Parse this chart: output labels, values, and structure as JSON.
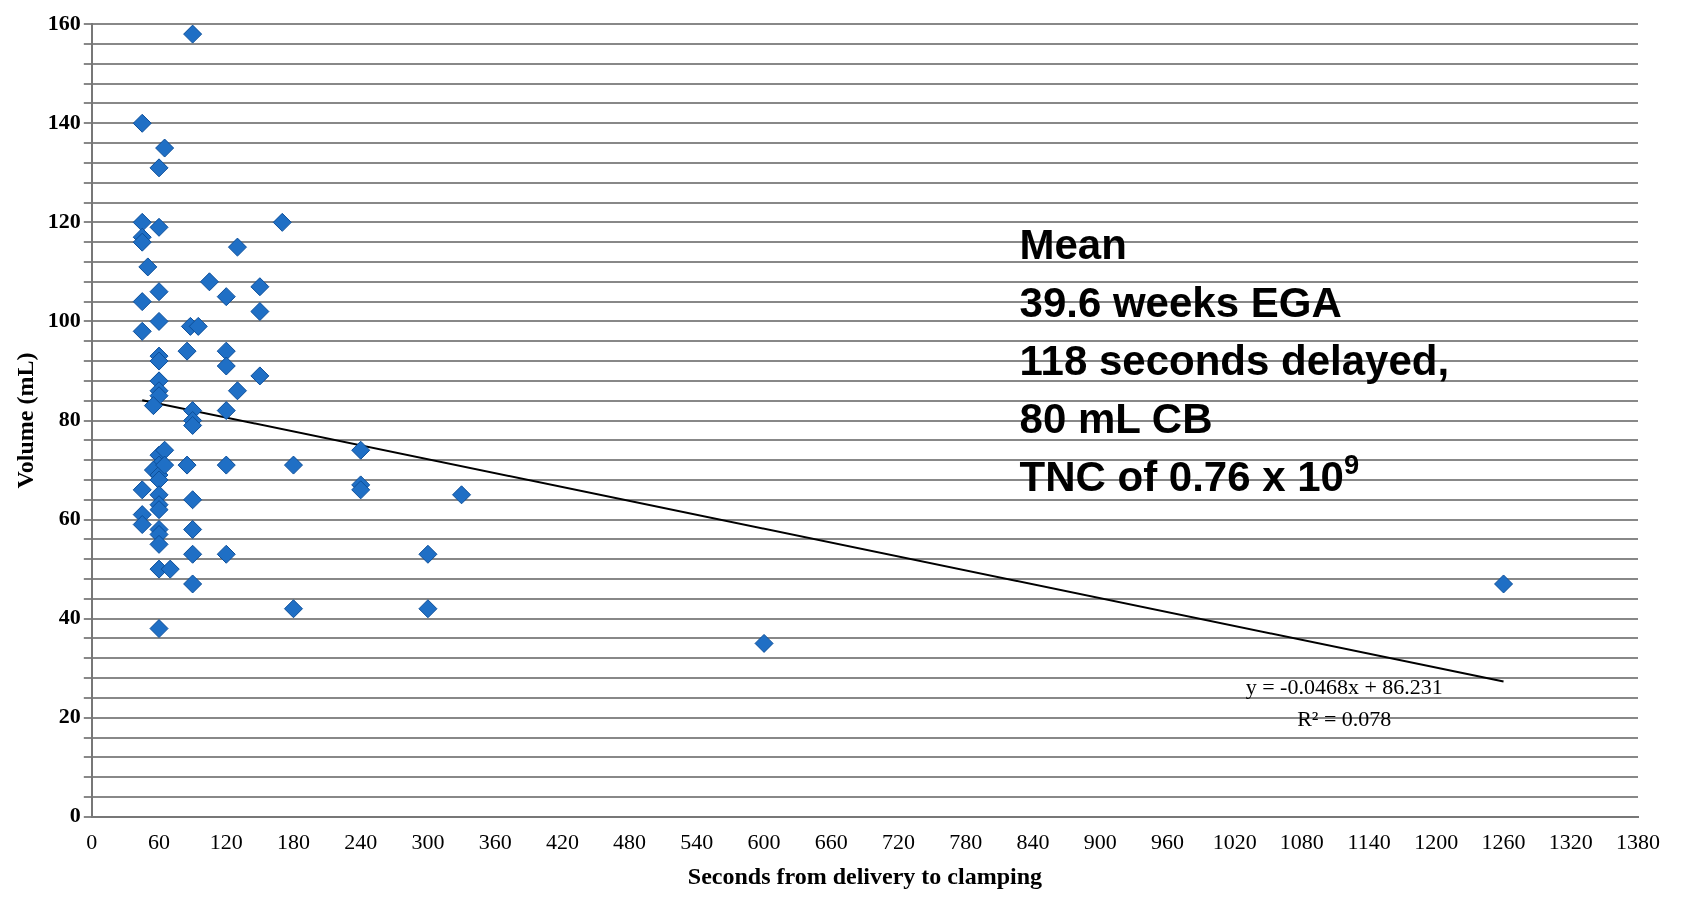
{
  "chart_data": {
    "type": "scatter",
    "xlabel": "Seconds from delivery to clamping",
    "ylabel": "Volume (mL)",
    "xlim": [
      0,
      1380
    ],
    "xticks": [
      0,
      60,
      120,
      180,
      240,
      300,
      360,
      420,
      480,
      540,
      600,
      660,
      720,
      780,
      840,
      900,
      960,
      1020,
      1080,
      1140,
      1200,
      1260,
      1320,
      1380
    ],
    "ylim": [
      0,
      160
    ],
    "yticks": [
      0,
      {
        "value": 4,
        "label": null
      },
      {
        "value": 8,
        "label": null
      },
      {
        "value": 12,
        "label": null
      },
      {
        "value": 16,
        "label": null
      },
      20,
      {
        "value": 24,
        "label": null
      },
      {
        "value": 28,
        "label": null
      },
      {
        "value": 32,
        "label": null
      },
      {
        "value": 36,
        "label": null
      },
      40,
      {
        "value": 44,
        "label": null
      },
      {
        "value": 48,
        "label": null
      },
      {
        "value": 52,
        "label": null
      },
      {
        "value": 56,
        "label": null
      },
      60,
      {
        "value": 64,
        "label": null
      },
      {
        "value": 68,
        "label": null
      },
      {
        "value": 72,
        "label": null
      },
      {
        "value": 76,
        "label": null
      },
      80,
      {
        "value": 84,
        "label": null
      },
      {
        "value": 88,
        "label": null
      },
      {
        "value": 92,
        "label": null
      },
      {
        "value": 96,
        "label": null
      },
      100,
      {
        "value": 104,
        "label": null
      },
      {
        "value": 108,
        "label": null
      },
      {
        "value": 112,
        "label": null
      },
      {
        "value": 116,
        "label": null
      },
      120,
      {
        "value": 124,
        "label": null
      },
      {
        "value": 128,
        "label": null
      },
      {
        "value": 132,
        "label": null
      },
      {
        "value": 136,
        "label": null
      },
      140,
      {
        "value": 144,
        "label": null
      },
      {
        "value": 148,
        "label": null
      },
      {
        "value": 152,
        "label": null
      },
      {
        "value": 156,
        "label": null
      },
      160
    ],
    "grid": "y",
    "legend": false,
    "marker": "diamond",
    "series": [
      {
        "type": "scatter",
        "color": "#1f6fc5",
        "x": [
          90,
          45,
          65,
          60,
          45,
          45,
          45,
          60,
          50,
          45,
          60,
          45,
          60,
          60,
          60,
          60,
          60,
          60,
          55,
          88,
          95,
          85,
          105,
          120,
          120,
          120,
          130,
          120,
          130,
          150,
          150,
          150,
          170,
          90,
          90,
          90,
          60,
          65,
          60,
          55,
          60,
          65,
          60,
          45,
          60,
          60,
          60,
          45,
          45,
          60,
          60,
          60,
          60,
          70,
          60,
          85,
          90,
          90,
          90,
          90,
          120,
          120,
          180,
          180,
          240,
          240,
          240,
          330,
          300,
          300,
          600,
          1260
        ],
        "values": [
          158,
          140,
          135,
          131,
          120,
          117,
          116,
          119,
          111,
          104,
          106,
          98,
          100,
          93,
          92,
          88,
          86,
          85,
          83,
          99,
          99,
          94,
          108,
          105,
          94,
          91,
          86,
          82,
          115,
          107,
          102,
          89,
          120,
          82,
          80,
          79,
          73,
          74,
          71,
          70,
          69,
          71,
          68,
          66,
          65,
          63,
          62,
          61,
          59,
          58,
          57,
          55,
          50,
          50,
          38,
          71,
          64,
          58,
          53,
          47,
          71,
          53,
          71,
          42,
          74,
          67,
          66,
          65,
          53,
          42,
          35,
          47
        ]
      },
      {
        "type": "line",
        "color": "#000000",
        "x": [
          45,
          1260
        ],
        "values": [
          84.1,
          27.3
        ],
        "marker": "none"
      }
    ],
    "annotations": [
      "Mean\n39.6 weeks EGA\n118 seconds delayed,\n80 mL CB\nTNC of 0.76 x 10$^{9}$",
      "y = -0.0468x + 86.231\nR² = 0.078"
    ]
  }
}
